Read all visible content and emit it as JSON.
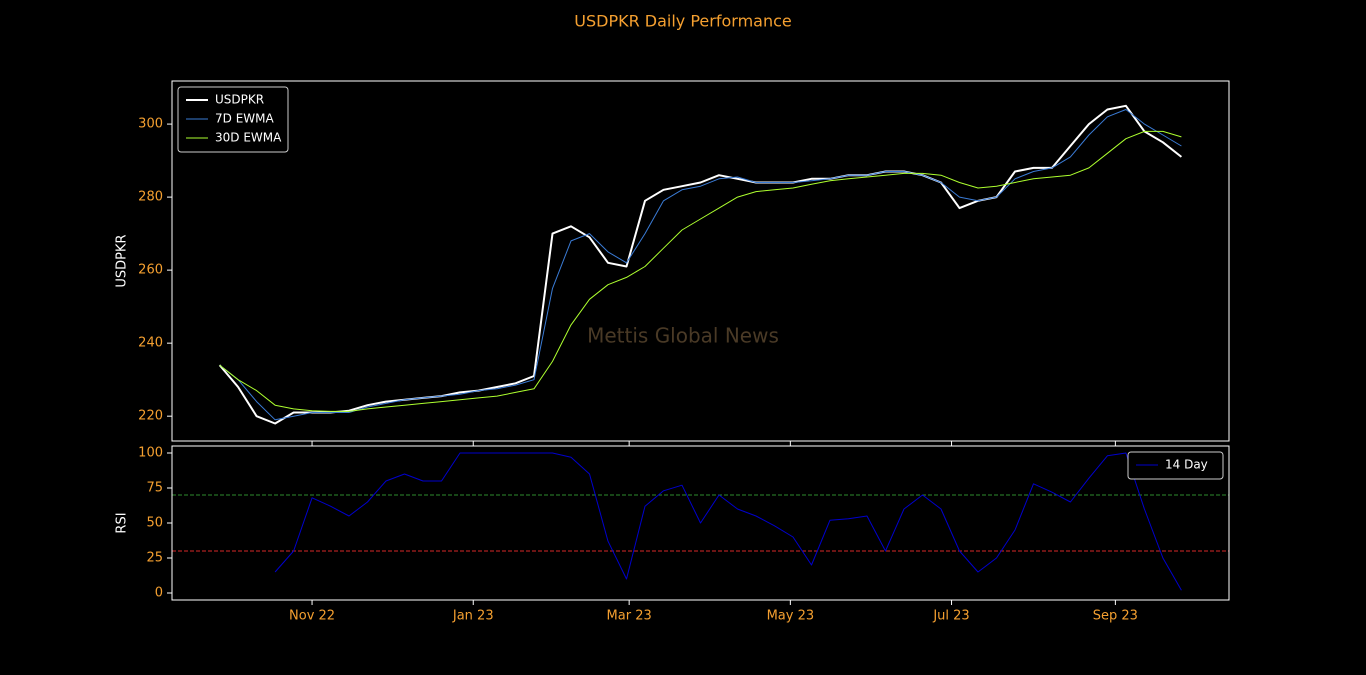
{
  "title": "USDPKR Daily Performance",
  "watermark": "Mettis Global News",
  "chart_data": [
    {
      "type": "line",
      "ylabel": "USDPKR",
      "x": [
        -35,
        -28,
        -21,
        -14,
        -7,
        0,
        7,
        14,
        21,
        28,
        35,
        42,
        49,
        56,
        63,
        70,
        77,
        84,
        91,
        98,
        105,
        112,
        119,
        126,
        133,
        140,
        147,
        154,
        161,
        168,
        175,
        182,
        189,
        196,
        203,
        210,
        217,
        224,
        231,
        238,
        245,
        252,
        259,
        266,
        273,
        280,
        287,
        294,
        301,
        308,
        315,
        322,
        329
      ],
      "xlim": [
        -53,
        347
      ],
      "ylim": [
        213.2,
        311.8
      ],
      "yticks": [
        220,
        240,
        260,
        280,
        300
      ],
      "legend": "upper left",
      "series": [
        {
          "name": "USDPKR",
          "color": "#ffffff",
          "width": 2,
          "values": [
            234,
            228,
            220,
            218,
            221,
            221,
            221,
            221.5,
            223,
            224,
            224.5,
            225,
            225.5,
            226.5,
            227,
            228,
            229,
            231,
            270,
            272,
            269,
            262,
            261,
            279,
            282,
            283,
            284,
            286,
            285,
            284,
            284,
            284,
            285,
            285,
            286,
            286,
            287,
            287,
            286,
            284,
            277,
            279,
            280,
            287,
            288,
            288,
            294,
            300,
            304,
            305,
            298,
            295,
            291
          ]
        },
        {
          "name": "7D EWMA",
          "color": "#3a7bd5",
          "width": 1,
          "values": [
            234,
            230,
            224,
            219,
            220,
            221,
            221,
            221,
            222.5,
            223.5,
            224.5,
            225,
            225.5,
            226,
            227,
            227.5,
            228.5,
            230,
            255,
            268,
            270,
            265,
            262,
            270,
            279,
            282,
            283,
            285,
            285.5,
            284,
            284,
            284,
            284.5,
            285,
            286,
            286,
            287,
            287,
            286,
            284,
            280,
            279,
            280,
            285,
            287,
            288,
            291,
            297,
            302,
            304,
            300,
            297,
            294
          ]
        },
        {
          "name": "30D EWMA",
          "color": "#adff2f",
          "width": 1,
          "values": [
            234,
            230,
            227,
            223,
            222,
            221.5,
            221.3,
            221.3,
            222,
            222.5,
            223,
            223.5,
            224,
            224.5,
            225,
            225.5,
            226.5,
            227.5,
            235,
            245,
            252,
            256,
            258,
            261,
            266,
            271,
            274,
            277,
            280,
            281.5,
            282,
            282.5,
            283.5,
            284.5,
            285,
            285.5,
            286,
            286.5,
            286.5,
            286,
            284,
            282.5,
            283,
            284,
            285,
            285.5,
            286,
            288,
            292,
            296,
            298,
            298,
            296.5
          ]
        }
      ]
    },
    {
      "type": "line",
      "ylabel": "RSI",
      "x": [
        -35,
        -28,
        -21,
        -14,
        -7,
        0,
        7,
        14,
        21,
        28,
        35,
        42,
        49,
        56,
        63,
        70,
        77,
        84,
        91,
        98,
        105,
        112,
        119,
        126,
        133,
        140,
        147,
        154,
        161,
        168,
        175,
        182,
        189,
        196,
        203,
        210,
        217,
        224,
        231,
        238,
        245,
        252,
        259,
        266,
        273,
        280,
        287,
        294,
        301,
        308,
        315,
        322,
        329
      ],
      "xlim": [
        -53,
        347
      ],
      "ylim": [
        -5,
        105
      ],
      "yticks": [
        0,
        25,
        50,
        75,
        100
      ],
      "xticks": [
        {
          "value": 0,
          "label": "Nov 22"
        },
        {
          "value": 61,
          "label": "Jan 23"
        },
        {
          "value": 120,
          "label": "Mar 23"
        },
        {
          "value": 181,
          "label": "May 23"
        },
        {
          "value": 242,
          "label": "Jul 23"
        },
        {
          "value": 304,
          "label": "Sep 23"
        }
      ],
      "legend": "upper right",
      "reference_lines": [
        {
          "value": 70,
          "color": "#2e8b2e"
        },
        {
          "value": 30,
          "color": "#d62728"
        }
      ],
      "series": [
        {
          "name": "14 Day",
          "color": "#0000cd",
          "width": 1,
          "values": [
            null,
            null,
            null,
            15,
            30,
            68,
            62,
            55,
            65,
            80,
            85,
            80,
            80,
            100,
            100,
            100,
            100,
            100,
            100,
            97,
            85,
            37,
            10,
            62,
            73,
            77,
            50,
            70,
            60,
            55,
            48,
            40,
            20,
            52,
            53,
            55,
            30,
            60,
            70,
            60,
            30,
            15,
            25,
            45,
            78,
            72,
            65,
            82,
            98,
            100,
            60,
            25,
            2
          ]
        }
      ]
    }
  ]
}
